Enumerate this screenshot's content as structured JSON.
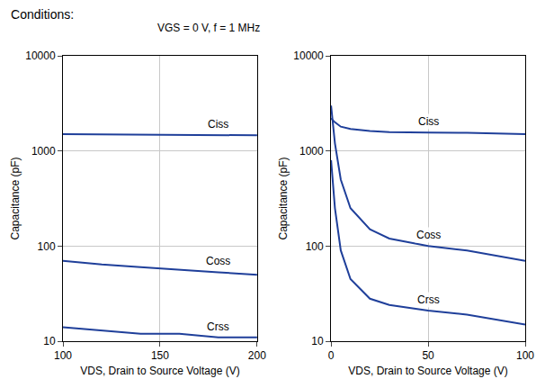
{
  "chart_data": [
    {
      "type": "line",
      "title": "Conditions:",
      "subtitle": "VGS = 0 V, f = 1 MHz",
      "x_label": "VDS, Drain to Source Voltage (V)",
      "y_label": "Capacitance (pF)",
      "log": "y",
      "grid": true,
      "xlim": [
        100,
        200
      ],
      "xticks": [
        100,
        150,
        200
      ],
      "ylim": [
        10,
        10000
      ],
      "yticks": [
        10,
        100,
        1000,
        10000
      ],
      "x": [
        100,
        120,
        140,
        160,
        180,
        200
      ],
      "series": [
        {
          "name": "Ciss",
          "color": "#1f3f9a",
          "line_style": "solid",
          "values": [
            1500,
            1490,
            1480,
            1470,
            1465,
            1460
          ]
        },
        {
          "name": "Coss",
          "color": "#1f3f9a",
          "line_style": "solid",
          "values": [
            70,
            64,
            60,
            56,
            53,
            50
          ]
        },
        {
          "name": "Crss",
          "color": "#1f3f9a",
          "line_style": "solid",
          "values": [
            14,
            13,
            12,
            12,
            11,
            11
          ]
        }
      ]
    },
    {
      "type": "line",
      "x_label": "VDS, Drain to Source Voltage (V)",
      "y_label": "Capacitance (pF)",
      "log": "y",
      "grid": true,
      "xlim": [
        0,
        100
      ],
      "xticks": [
        0,
        50,
        100
      ],
      "ylim": [
        10,
        10000
      ],
      "yticks": [
        10,
        100,
        1000,
        10000
      ],
      "x": [
        0,
        2,
        5,
        10,
        20,
        30,
        50,
        70,
        100
      ],
      "series": [
        {
          "name": "Ciss",
          "color": "#1f3f9a",
          "line_style": "solid",
          "values": [
            2200,
            2000,
            1800,
            1700,
            1620,
            1580,
            1560,
            1550,
            1500
          ]
        },
        {
          "name": "Coss",
          "color": "#1f3f9a",
          "line_style": "solid",
          "values": [
            3000,
            1200,
            500,
            250,
            150,
            120,
            100,
            90,
            70
          ]
        },
        {
          "name": "Crss",
          "color": "#1f3f9a",
          "line_style": "solid",
          "values": [
            800,
            250,
            90,
            45,
            28,
            24,
            21,
            19,
            15
          ]
        }
      ]
    }
  ]
}
